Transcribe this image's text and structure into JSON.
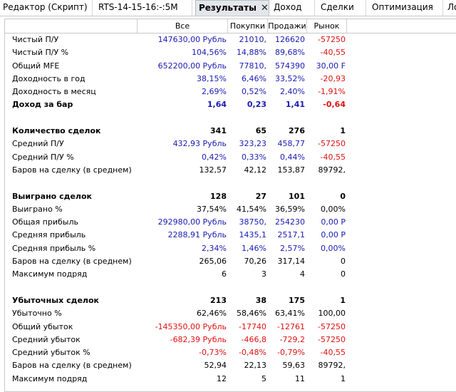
{
  "tabs": [
    {
      "label": "Редактор (Скрипт)"
    },
    {
      "label": "RTS-14-15-16:-:5M"
    },
    {
      "label": "Результаты",
      "close": "✕"
    },
    {
      "label": "Доход"
    },
    {
      "label": "Сделки"
    },
    {
      "label": "Оптимизация"
    },
    {
      "label": "Ло"
    }
  ],
  "headers": [
    "",
    "Все",
    "Покупки",
    "Продажи",
    "Рынок"
  ],
  "colors": {
    "blue": "#1a1ab3",
    "red": "#e01010"
  },
  "rows": [
    {
      "label": "Чистый П/У",
      "values": [
        "147630,00 Рубль",
        "21010,",
        "126620",
        "-57250"
      ],
      "colors": [
        "blue",
        "blue",
        "blue",
        "red"
      ]
    },
    {
      "label": "Чистый П/У %",
      "values": [
        "104,56%",
        "14,88%",
        "89,68%",
        "-40,55"
      ],
      "colors": [
        "blue",
        "blue",
        "blue",
        "red"
      ]
    },
    {
      "label": "Общий MFE",
      "values": [
        "652200,00 Рубль",
        "77810,",
        "574390",
        "30,00 F"
      ],
      "colors": [
        "blue",
        "blue",
        "blue",
        "blue"
      ]
    },
    {
      "label": "Доходность в год",
      "values": [
        "38,15%",
        "6,46%",
        "33,52%",
        "-20,93"
      ],
      "colors": [
        "blue",
        "blue",
        "blue",
        "red"
      ]
    },
    {
      "label": "Доходность в месяц",
      "values": [
        "2,69%",
        "0,52%",
        "2,40%",
        "-1,91%"
      ],
      "colors": [
        "blue",
        "blue",
        "blue",
        "red"
      ]
    },
    {
      "label": "Доход за бар",
      "values": [
        "1,64",
        "0,23",
        "1,41",
        "-0,64"
      ],
      "colors": [
        "blue",
        "blue",
        "blue",
        "red"
      ],
      "bold": true
    },
    {
      "blank": true
    },
    {
      "label": "Количество сделок",
      "values": [
        "341",
        "65",
        "276",
        "1"
      ],
      "colors": [
        "black",
        "black",
        "black",
        "black"
      ],
      "bold": true
    },
    {
      "label": "Средний П/У",
      "values": [
        "432,93 Рубль",
        "323,23",
        "458,77",
        "-57250"
      ],
      "colors": [
        "blue",
        "blue",
        "blue",
        "red"
      ]
    },
    {
      "label": "Средний П/У %",
      "values": [
        "0,42%",
        "0,33%",
        "0,44%",
        "-40,55"
      ],
      "colors": [
        "blue",
        "blue",
        "blue",
        "red"
      ]
    },
    {
      "label": "Баров на сделку (в среднем)",
      "values": [
        "132,57",
        "42,12",
        "153,87",
        "89792,"
      ],
      "colors": [
        "black",
        "black",
        "black",
        "black"
      ]
    },
    {
      "blank": true
    },
    {
      "label": "Выиграно сделок",
      "values": [
        "128",
        "27",
        "101",
        "0"
      ],
      "colors": [
        "black",
        "black",
        "black",
        "black"
      ],
      "bold": true
    },
    {
      "label": "Выиграно %",
      "values": [
        "37,54%",
        "41,54%",
        "36,59%",
        "0,00%"
      ],
      "colors": [
        "black",
        "black",
        "black",
        "black"
      ]
    },
    {
      "label": "Общая прибыль",
      "values": [
        "292980,00 Рубль",
        "38750,",
        "254230",
        "0,00 Р"
      ],
      "colors": [
        "blue",
        "blue",
        "blue",
        "blue"
      ]
    },
    {
      "label": "Средняя прибыль",
      "values": [
        "2288,91 Рубль",
        "1435,1",
        "2517,1",
        "0,00 Р"
      ],
      "colors": [
        "blue",
        "blue",
        "blue",
        "blue"
      ]
    },
    {
      "label": "Средняя прибыль %",
      "values": [
        "2,34%",
        "1,46%",
        "2,57%",
        "0,00%"
      ],
      "colors": [
        "blue",
        "blue",
        "blue",
        "blue"
      ]
    },
    {
      "label": "Баров на сделку (в среднем)",
      "values": [
        "265,06",
        "70,26",
        "317,14",
        "0"
      ],
      "colors": [
        "black",
        "black",
        "black",
        "black"
      ]
    },
    {
      "label": "Максимум подряд",
      "values": [
        "6",
        "3",
        "4",
        "0"
      ],
      "colors": [
        "black",
        "black",
        "black",
        "black"
      ]
    },
    {
      "blank": true
    },
    {
      "label": "Убыточных сделок",
      "values": [
        "213",
        "38",
        "175",
        "1"
      ],
      "colors": [
        "black",
        "black",
        "black",
        "black"
      ],
      "bold": true
    },
    {
      "label": "Убыточно %",
      "values": [
        "62,46%",
        "58,46%",
        "63,41%",
        "100,00"
      ],
      "colors": [
        "black",
        "black",
        "black",
        "black"
      ]
    },
    {
      "label": "Общий убыток",
      "values": [
        "-145350,00 Рубль",
        "-17740",
        "-12761",
        "-57250"
      ],
      "colors": [
        "red",
        "red",
        "red",
        "red"
      ]
    },
    {
      "label": "Средний убыток",
      "values": [
        "-682,39 Рубль",
        "-466,8",
        "-729,2",
        "-57250"
      ],
      "colors": [
        "red",
        "red",
        "red",
        "red"
      ]
    },
    {
      "label": "Средний убыток %",
      "values": [
        "-0,73%",
        "-0,48%",
        "-0,79%",
        "-40,55"
      ],
      "colors": [
        "red",
        "red",
        "red",
        "red"
      ]
    },
    {
      "label": "Баров на сделку (в среднем)",
      "values": [
        "52,94",
        "22,13",
        "59,63",
        "89792,"
      ],
      "colors": [
        "black",
        "black",
        "black",
        "black"
      ]
    },
    {
      "label": "Максимум подряд",
      "values": [
        "12",
        "5",
        "11",
        "1"
      ],
      "colors": [
        "black",
        "black",
        "black",
        "black"
      ]
    }
  ]
}
